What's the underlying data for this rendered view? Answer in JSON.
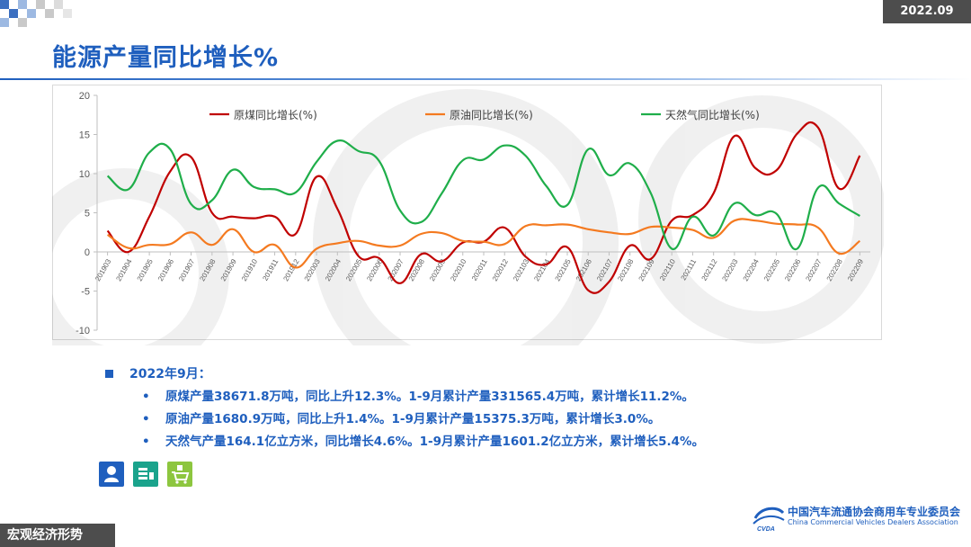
{
  "header": {
    "date_badge": "2022.09",
    "title": "能源产量同比增长%"
  },
  "chart_data": {
    "type": "line",
    "title": "",
    "xlabel": "",
    "ylabel": "",
    "ylim": [
      -10,
      20
    ],
    "yticks": [
      -10,
      -5,
      0,
      5,
      10,
      15,
      20
    ],
    "grid": false,
    "legend_position": "top",
    "categories": [
      "201903",
      "201904",
      "201905",
      "201906",
      "201907",
      "201908",
      "201909",
      "201910",
      "201911",
      "201912",
      "202003",
      "202004",
      "202005",
      "202006",
      "202007",
      "202008",
      "202009",
      "202010",
      "202011",
      "202012",
      "202103",
      "202104",
      "202105",
      "202106",
      "202107",
      "202108",
      "202109",
      "202110",
      "202111",
      "202112",
      "202203",
      "202204",
      "202205",
      "202206",
      "202207",
      "202208",
      "202209"
    ],
    "series": [
      {
        "name": "原煤同比增长(%)",
        "color": "#c00000",
        "values": [
          2.7,
          0,
          4.5,
          10.3,
          12.1,
          5.0,
          4.5,
          4.3,
          4.5,
          2.3,
          9.6,
          5.5,
          -0.5,
          -0.8,
          -4.0,
          -0.3,
          -1.2,
          1.2,
          1.3,
          3.1,
          -0.6,
          -1.6,
          0.6,
          -4.9,
          -3.8,
          0.8,
          -0.9,
          4.0,
          4.7,
          7.5,
          14.8,
          10.7,
          10.4,
          15.1,
          15.9,
          8.1,
          12.3
        ]
      },
      {
        "name": "原油同比增长(%)",
        "color": "#f47a20",
        "values": [
          2.2,
          0.5,
          0.9,
          1.0,
          2.5,
          0.9,
          2.9,
          0,
          0.9,
          -2.0,
          0.4,
          1.1,
          1.4,
          0.8,
          0.8,
          2.3,
          2.4,
          1.4,
          1.3,
          1.0,
          3.3,
          3.4,
          3.5,
          2.9,
          2.5,
          2.3,
          3.2,
          3.1,
          2.8,
          1.8,
          4.0,
          4.0,
          3.6,
          3.5,
          3.1,
          -0.2,
          1.4
        ]
      },
      {
        "name": "天然气同比增长(%)",
        "color": "#1fae4a",
        "values": [
          9.7,
          8.0,
          12.7,
          13.1,
          6.1,
          6.6,
          10.5,
          8.3,
          8.0,
          7.6,
          11.5,
          14.2,
          12.9,
          11.6,
          5.3,
          3.8,
          7.5,
          11.7,
          11.8,
          13.6,
          12.3,
          8.4,
          6.0,
          13.1,
          9.8,
          11.3,
          7.5,
          0.4,
          4.5,
          2.1,
          6.2,
          4.7,
          4.9,
          0.4,
          8.2,
          6.2,
          4.6
        ]
      }
    ]
  },
  "notes": {
    "heading": "2022年9月：",
    "items": [
      "原煤产量38671.8万吨，同比上升12.3%。1-9月累计产量331565.4万吨，累计增长11.2%。",
      "原油产量1680.9万吨，同比上升1.4%。1-9月累计产量15375.3万吨，累计增长3.0%。",
      "天然气产量164.1亿立方米，同比增长4.6%。1-9月累计产量1601.2亿立方米，累计增长5.4%。"
    ],
    "bullet": "•"
  },
  "icons": {
    "names": [
      "person-icon",
      "coins-icon",
      "cart-icon"
    ],
    "colors": [
      "#1f5fbe",
      "#1aa38c",
      "#8dc63f"
    ]
  },
  "footer": {
    "section_label": "宏观经济形势",
    "org_name": "中国汽车流通协会商用车专业委员会",
    "org_english": "China Commercial Vehicles Dealers Association",
    "logo_text": "CVDA"
  }
}
